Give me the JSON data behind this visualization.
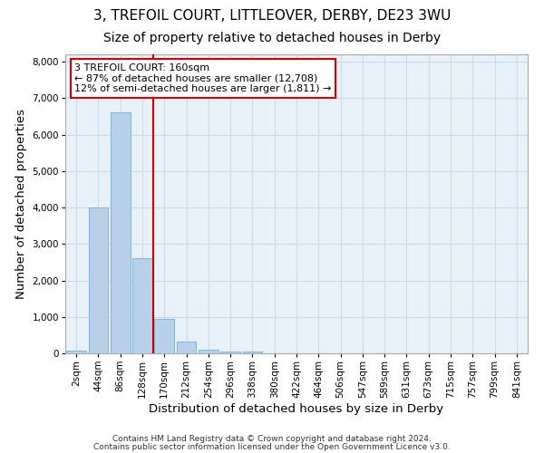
{
  "title": "3, TREFOIL COURT, LITTLEOVER, DERBY, DE23 3WU",
  "subtitle": "Size of property relative to detached houses in Derby",
  "xlabel": "Distribution of detached houses by size in Derby",
  "ylabel": "Number of detached properties",
  "footnote1": "Contains HM Land Registry data © Crown copyright and database right 2024.",
  "footnote2": "Contains public sector information licensed under the Open Government Licence v3.0.",
  "bin_labels": [
    "2sqm",
    "44sqm",
    "86sqm",
    "128sqm",
    "170sqm",
    "212sqm",
    "254sqm",
    "296sqm",
    "338sqm",
    "380sqm",
    "422sqm",
    "464sqm",
    "506sqm",
    "547sqm",
    "589sqm",
    "631sqm",
    "673sqm",
    "715sqm",
    "757sqm",
    "799sqm",
    "841sqm"
  ],
  "bar_values": [
    80,
    4000,
    6600,
    2600,
    950,
    330,
    100,
    60,
    50,
    0,
    0,
    0,
    0,
    0,
    0,
    0,
    0,
    0,
    0,
    0,
    0
  ],
  "bar_color": "#b8d0e8",
  "bar_edge_color": "#7aaed0",
  "grid_color": "#ccdaee",
  "bg_color": "#e8f0f8",
  "vline_color": "#cc0000",
  "annotation_line1": "3 TREFOIL COURT: 160sqm",
  "annotation_line2": "← 87% of detached houses are smaller (12,708)",
  "annotation_line3": "12% of semi-detached houses are larger (1,811) →",
  "annotation_box_color": "#ffffff",
  "annotation_box_edge": "#cc0000",
  "ylim": [
    0,
    8200
  ],
  "yticks": [
    0,
    1000,
    2000,
    3000,
    4000,
    5000,
    6000,
    7000,
    8000
  ],
  "title_fontsize": 11,
  "subtitle_fontsize": 10,
  "axis_label_fontsize": 9.5,
  "tick_fontsize": 7.5,
  "annotation_fontsize": 8,
  "footnote_fontsize": 6.5
}
